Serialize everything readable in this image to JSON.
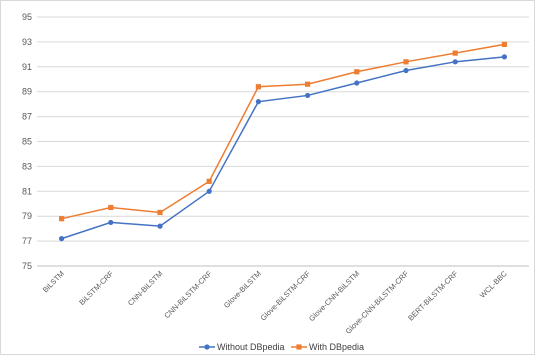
{
  "chart_data": {
    "type": "line",
    "categories": [
      "BiLSTM",
      "BiLSTM-CRF",
      "CNN-BiLSTM",
      "CNN-BiLSTM-CRF",
      "Glove-BiLSTM",
      "Glove-BiLSTM-CRF",
      "Glove-CNN-BiLSTM",
      "Glove-CNN-BiLSTM-CRF",
      "BERT-BiLSTM-CRF",
      "WCL-BBC"
    ],
    "series": [
      {
        "name": "Without DBpedia",
        "color": "#4472c4",
        "marker": "circle",
        "values": [
          77.2,
          78.5,
          78.2,
          81.0,
          88.2,
          88.7,
          89.7,
          90.7,
          91.4,
          91.8
        ]
      },
      {
        "name": "With DBpedia",
        "color": "#ed7d31",
        "marker": "square",
        "values": [
          78.8,
          79.7,
          79.3,
          81.8,
          89.4,
          89.6,
          90.6,
          91.4,
          92.1,
          92.8
        ]
      }
    ],
    "yticks": [
      "75",
      "77",
      "79",
      "81",
      "83",
      "85",
      "87",
      "89",
      "91",
      "93",
      "95"
    ],
    "ylim": [
      75,
      95
    ],
    "grid": true,
    "legend_position": "bottom",
    "title": "",
    "xlabel": "",
    "ylabel": ""
  }
}
